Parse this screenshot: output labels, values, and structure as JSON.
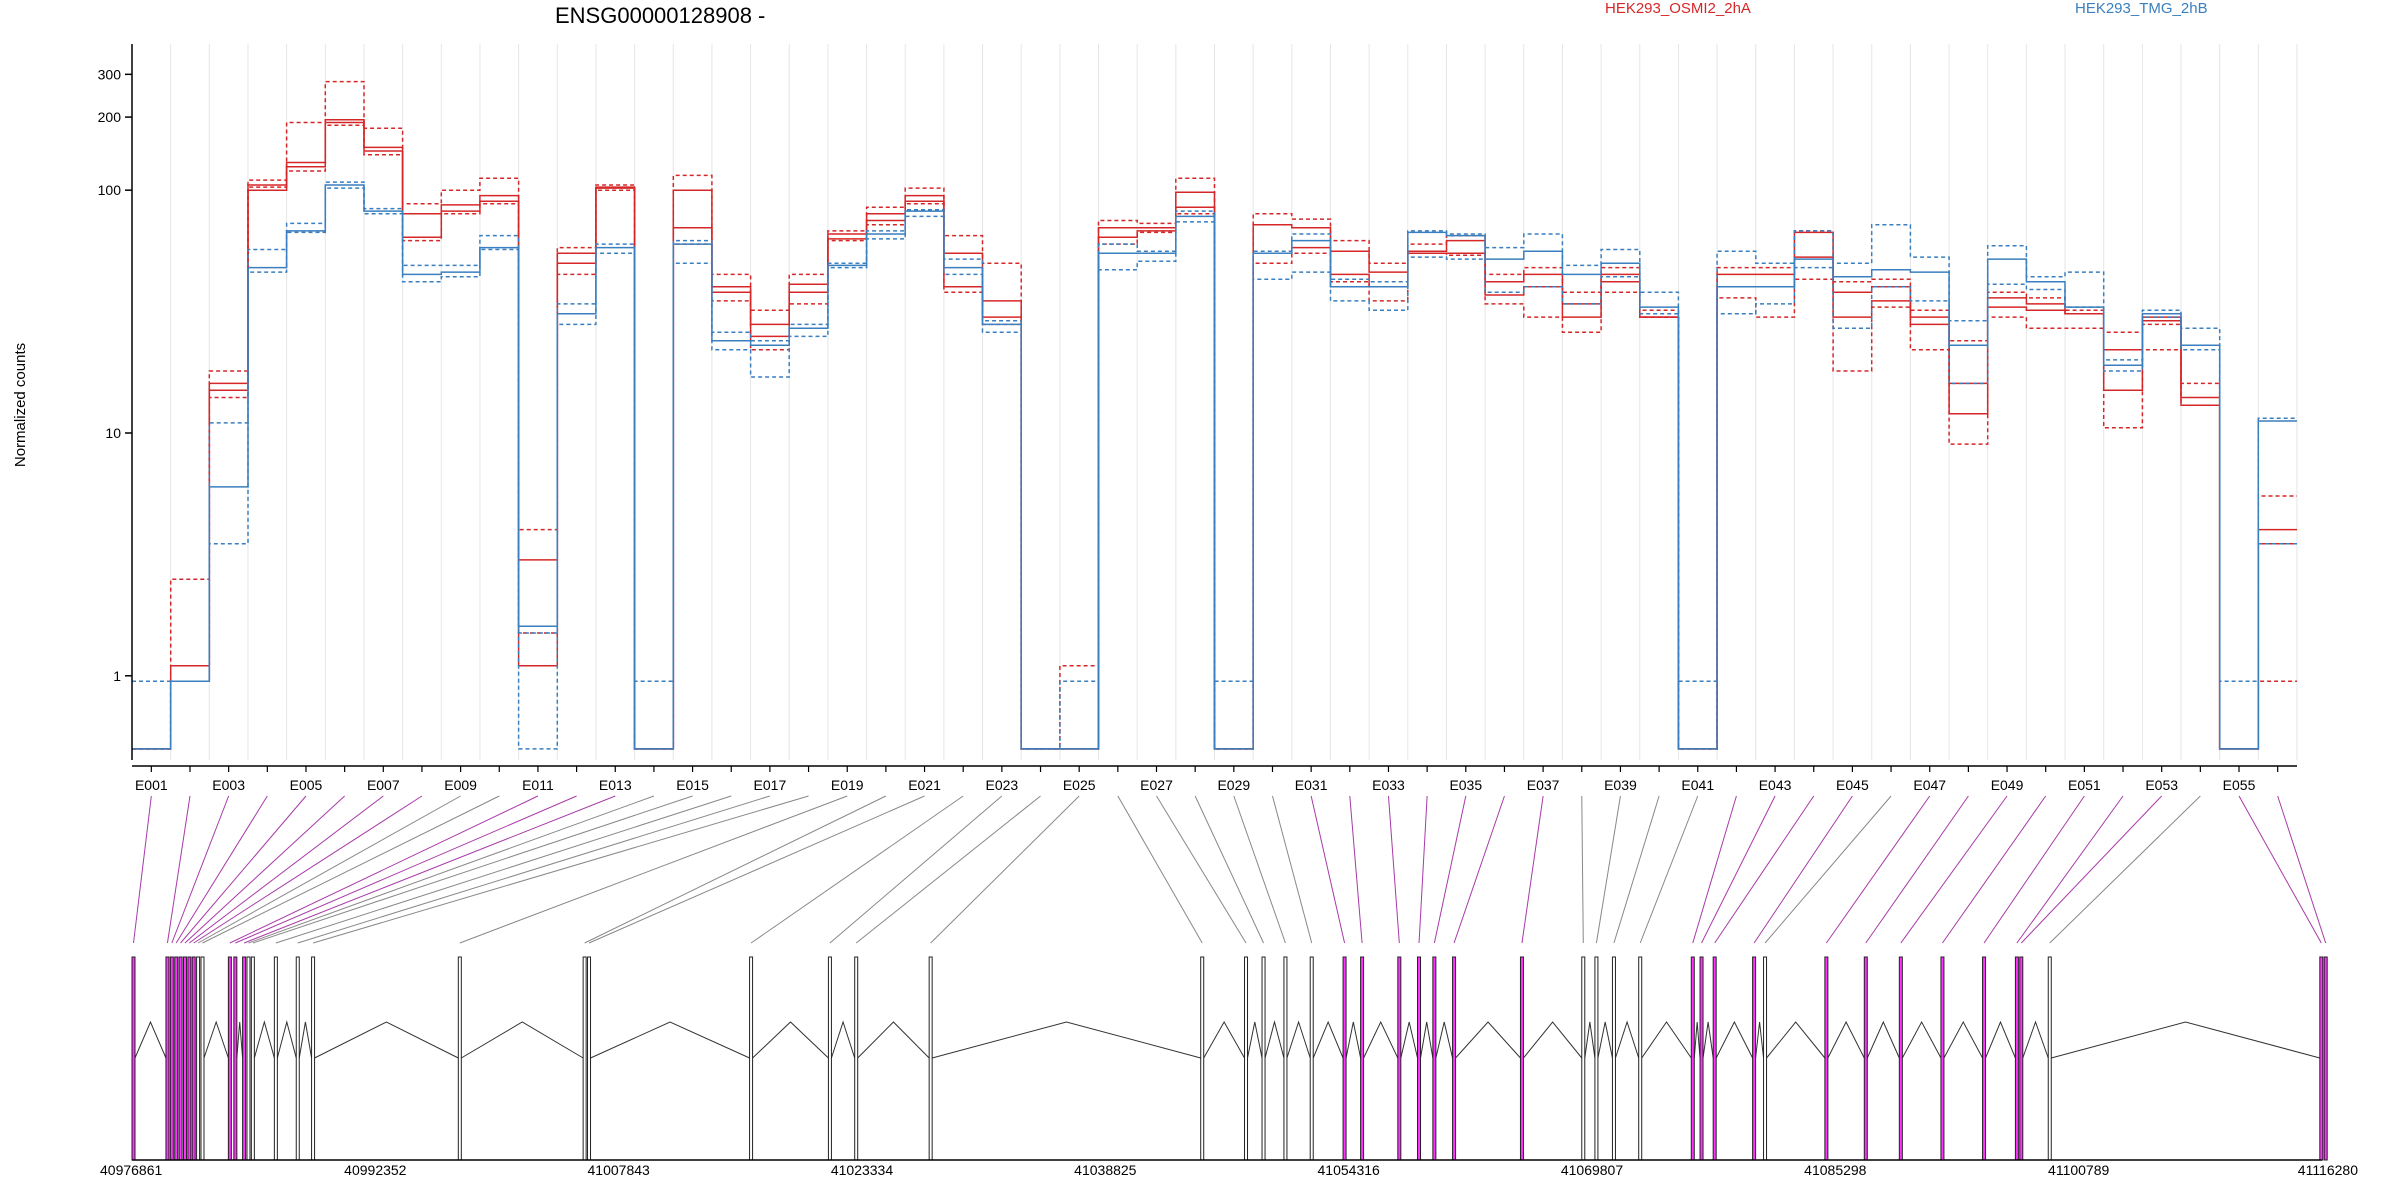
{
  "chart_data": {
    "type": "line",
    "title": "ENSG00000128908 -",
    "ylabel": "Normalized counts",
    "yscale": "log",
    "ylim": [
      0.45,
      400
    ],
    "ytick_labels": [
      "1",
      "10",
      "100",
      "200",
      "300"
    ],
    "ytick_values": [
      1,
      10,
      100,
      200,
      300
    ],
    "legend": [
      {
        "name": "HEK293_OSMI2_2hA",
        "color": "#d62728"
      },
      {
        "name": "HEK293_TMG_2hB",
        "color": "#3a7fbf"
      }
    ],
    "colors": {
      "osmi": "#d62728",
      "tmg": "#3a7fbf",
      "highlight": "#ff33ff"
    },
    "exons": [
      "E001",
      "E002",
      "E003",
      "E004",
      "E005",
      "E006",
      "E007",
      "E008",
      "E009",
      "E010",
      "E011",
      "E012",
      "E013",
      "E014",
      "E015",
      "E016",
      "E017",
      "E018",
      "E019",
      "E020",
      "E021",
      "E022",
      "E023",
      "E024",
      "E025",
      "E026",
      "E027",
      "E028",
      "E029",
      "E030",
      "E031",
      "E032",
      "E033",
      "E034",
      "E035",
      "E036",
      "E037",
      "E038",
      "E039",
      "E040",
      "E041",
      "E042",
      "E043",
      "E044",
      "E045",
      "E046",
      "E047",
      "E048",
      "E049",
      "E050",
      "E051",
      "E052",
      "E053",
      "E054",
      "E055",
      "E056"
    ],
    "exon_tick_labels": [
      "E001",
      "E003",
      "E005",
      "E007",
      "E009",
      "E011",
      "E013",
      "E015",
      "E017",
      "E019",
      "E021",
      "E023",
      "E025",
      "E027",
      "E029",
      "E031",
      "E033",
      "E035",
      "E037",
      "E039",
      "E041",
      "E043",
      "E045",
      "E047",
      "E049",
      "E051",
      "E053",
      "E055"
    ],
    "series": [
      {
        "group": "osmi",
        "dashed": true,
        "values": [
          0.5,
          2.5,
          18,
          110,
          190,
          280,
          180,
          88,
          100,
          112,
          4,
          58,
          105,
          0.5,
          115,
          45,
          32,
          45,
          68,
          85,
          102,
          65,
          50,
          0.5,
          1.1,
          75,
          73,
          112,
          0.5,
          80,
          76,
          62,
          50,
          60,
          65,
          45,
          48,
          38,
          48,
          32,
          0.5,
          48,
          48,
          68,
          42,
          43,
          32,
          24,
          38,
          36,
          32,
          26,
          28,
          16,
          0.5,
          5.5
        ]
      },
      {
        "group": "osmi",
        "dashed": false,
        "values": [
          0.5,
          1.1,
          15,
          100,
          130,
          195,
          150,
          80,
          87,
          95,
          3,
          55,
          103,
          0.5,
          100,
          40,
          28,
          41,
          66,
          80,
          95,
          55,
          35,
          0.5,
          0.5,
          70,
          70,
          98,
          0.5,
          72,
          70,
          56,
          46,
          56,
          62,
          42,
          45,
          34,
          45,
          30,
          0.5,
          45,
          45,
          67,
          38,
          40,
          30,
          16,
          36,
          34,
          31,
          22,
          30,
          14,
          0.5,
          4
        ]
      },
      {
        "group": "osmi",
        "dashed": false,
        "values": [
          0.5,
          0.95,
          16,
          105,
          125,
          190,
          145,
          64,
          82,
          90,
          1.1,
          50,
          102,
          0.5,
          70,
          38,
          25,
          38,
          63,
          75,
          90,
          40,
          30,
          0.5,
          0.5,
          64,
          68,
          85,
          0.5,
          55,
          58,
          45,
          40,
          55,
          55,
          37,
          40,
          30,
          42,
          30,
          0.5,
          40,
          40,
          53,
          30,
          35,
          28,
          12,
          33,
          32,
          31,
          15,
          29,
          13,
          0.5,
          3.5
        ]
      },
      {
        "group": "osmi",
        "dashed": true,
        "values": [
          0.5,
          0.95,
          14,
          103,
          120,
          185,
          140,
          62,
          80,
          88,
          1.5,
          45,
          100,
          0.5,
          60,
          35,
          22,
          34,
          62,
          72,
          88,
          38,
          28,
          0.5,
          0.5,
          60,
          67,
          80,
          0.5,
          50,
          55,
          42,
          35,
          55,
          54,
          34,
          30,
          26,
          38,
          30,
          0.5,
          36,
          30,
          43,
          18,
          33,
          22,
          9,
          30,
          27,
          27,
          10.5,
          22,
          13,
          0.5,
          0.95
        ]
      },
      {
        "group": "tmg",
        "dashed": true,
        "values": [
          0.95,
          0.95,
          11,
          57,
          73,
          108,
          84,
          49,
          49,
          65,
          0.5,
          34,
          60,
          0.95,
          62,
          26,
          24,
          28,
          50,
          68,
          83,
          52,
          29,
          0.5,
          0.95,
          60,
          56,
          82,
          0.95,
          56,
          66,
          43,
          42,
          68,
          66,
          58,
          66,
          49,
          57,
          38,
          0.95,
          56,
          50,
          68,
          50,
          72,
          53,
          29,
          59,
          44,
          46,
          20,
          32,
          27,
          0.95,
          11.5
        ]
      },
      {
        "group": "tmg",
        "dashed": false,
        "values": [
          0.5,
          0.95,
          6,
          48,
          68,
          105,
          82,
          45,
          46,
          58,
          1.6,
          31,
          58,
          0.5,
          60,
          24,
          23,
          27,
          49,
          66,
          82,
          48,
          28,
          0.5,
          0.5,
          55,
          55,
          78,
          0.5,
          55,
          62,
          40,
          40,
          67,
          65,
          52,
          56,
          45,
          50,
          33,
          0.5,
          40,
          40,
          52,
          44,
          47,
          46,
          23,
          52,
          42,
          33,
          19,
          31,
          23,
          0.5,
          11.2
        ]
      },
      {
        "group": "tmg",
        "dashed": true,
        "values": [
          0.5,
          0.95,
          3.5,
          46,
          67,
          102,
          80,
          42,
          44,
          57,
          1.5,
          28,
          55,
          0.5,
          50,
          22,
          17,
          25,
          48,
          63,
          78,
          45,
          26,
          0.5,
          0.5,
          47,
          51,
          74,
          0.5,
          43,
          46,
          35,
          32,
          53,
          52,
          38,
          40,
          34,
          44,
          31,
          0.5,
          31,
          34,
          48,
          27,
          40,
          35,
          16,
          41,
          39,
          33,
          18,
          30,
          22,
          0.5,
          3.5
        ]
      }
    ],
    "genomic_tick_labels": [
      "40976861",
      "40992352",
      "41007843",
      "41023334",
      "41038825",
      "41054316",
      "41069807",
      "41085298",
      "41100789",
      "41116280"
    ],
    "genomic_tick_values": [
      40976861,
      40992352,
      41007843,
      41023334,
      41038825,
      41054316,
      41069807,
      41085298,
      41100789,
      41116280
    ]
  }
}
